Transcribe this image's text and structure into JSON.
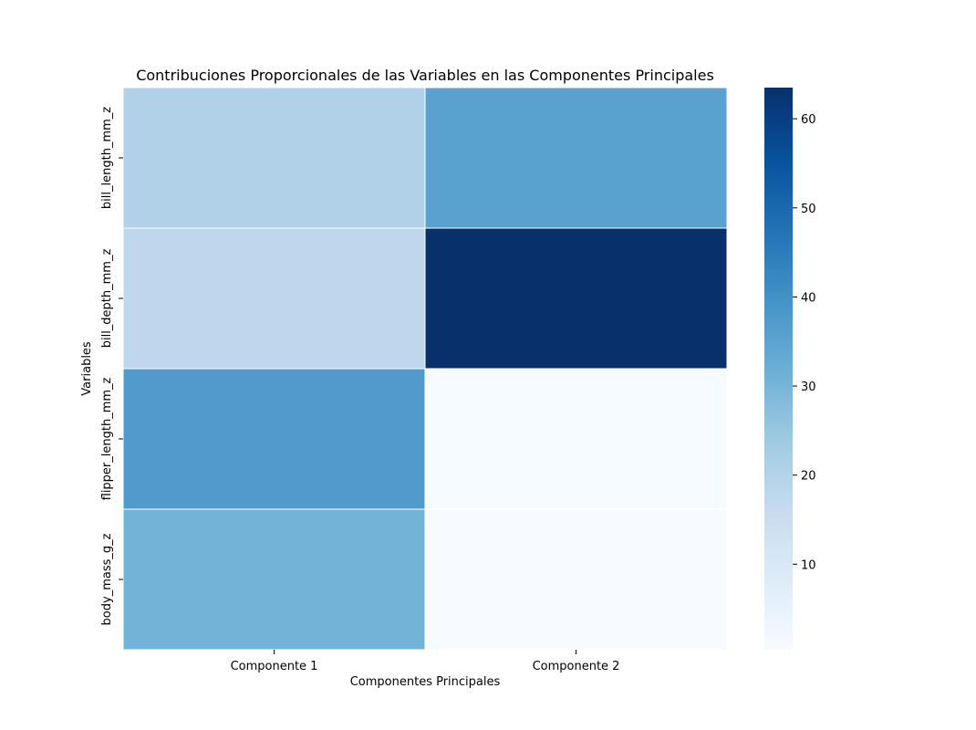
{
  "chart_data": {
    "type": "heatmap",
    "title": "Contribuciones Proporcionales de las Variables en las Componentes Principales",
    "xlabel": "Componentes Principales",
    "ylabel": "Variables",
    "columns": [
      "Componente 1",
      "Componente 2"
    ],
    "rows": [
      "bill_length_mm_z",
      "bill_depth_mm_z",
      "flipper_length_mm_z",
      "body_mass_g_z"
    ],
    "values": [
      [
        20.6,
        35.5
      ],
      [
        17.8,
        63.5
      ],
      [
        37.2,
        0.6
      ],
      [
        30.5,
        0.4
      ]
    ],
    "colorbar": {
      "ticks": [
        10,
        20,
        30,
        40,
        50,
        60
      ],
      "vmin": 0.4,
      "vmax": 63.5,
      "colormap": "Blues"
    },
    "grid": false,
    "legend": "colorbar-right"
  }
}
